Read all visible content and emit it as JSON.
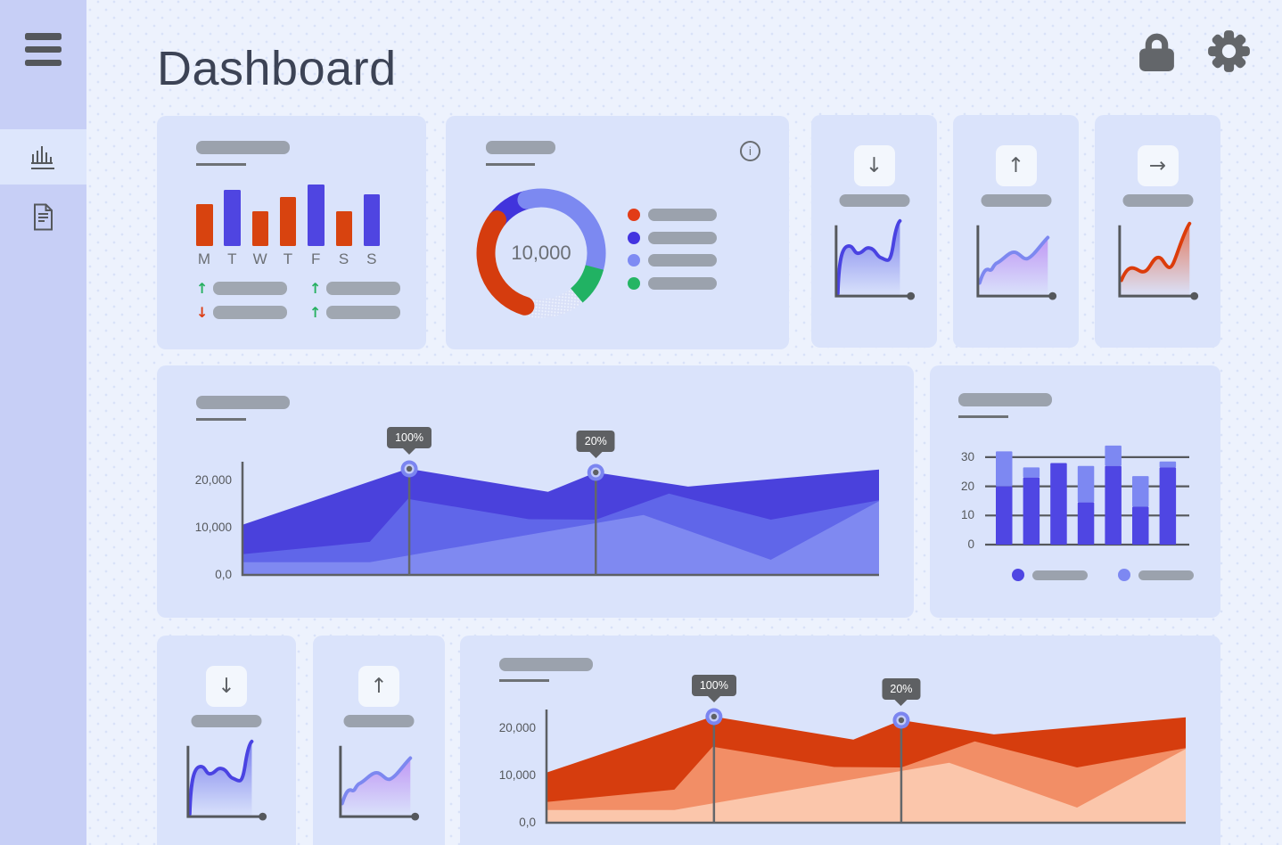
{
  "app": {
    "title": "Dashboard",
    "background": "#edf2fd",
    "card_background": "#dae3fb"
  },
  "sidebar": {
    "background": "#c7cff6",
    "active_background": "#dde6fc",
    "items": [
      {
        "id": "charts",
        "icon": "bar-chart-icon",
        "active": true
      },
      {
        "id": "reports",
        "icon": "document-icon",
        "active": false
      }
    ]
  },
  "header": {
    "actions": [
      {
        "id": "lock",
        "icon": "lock-icon"
      },
      {
        "id": "settings",
        "icon": "gear-icon"
      }
    ]
  },
  "cards": {
    "weekly_bars": {
      "chart_data": {
        "type": "bar",
        "categories": [
          "M",
          "T",
          "W",
          "T",
          "F",
          "S",
          "S"
        ],
        "values": [
          47,
          63,
          39,
          55,
          69,
          39,
          58
        ],
        "bar_colors": [
          "#d8430f",
          "#4f45e1",
          "#d8430f",
          "#d8430f",
          "#4f45e1",
          "#d8430f",
          "#4f45e1"
        ]
      },
      "stats": [
        {
          "direction": "up",
          "color": "#27b061"
        },
        {
          "direction": "up",
          "color": "#27b061"
        },
        {
          "direction": "down",
          "color": "#dc3f16"
        },
        {
          "direction": "up",
          "color": "#27b061"
        }
      ]
    },
    "donut": {
      "center_value": "10,000",
      "info_label": "i",
      "chart_data": {
        "type": "donut",
        "segments": [
          {
            "name": "muted-dotted",
            "start": 140,
            "span": 57,
            "pattern": true,
            "color": "#d9e0f8"
          },
          {
            "name": "dark-blue",
            "start": 307,
            "span": 38,
            "color": "#4134dc"
          },
          {
            "name": "periwinkle",
            "start": 345,
            "span": 120,
            "color": "#7c89f1",
            "cap": "round"
          },
          {
            "name": "green",
            "start": 105,
            "span": 35,
            "color": "#21b263"
          },
          {
            "name": "red",
            "start": 197,
            "span": 110,
            "color": "#d53c0e",
            "cap": "round"
          }
        ]
      },
      "legend": [
        {
          "color": "#e23c17"
        },
        {
          "color": "#4334e0"
        },
        {
          "color": "#7e8bf3"
        },
        {
          "color": "#25b564"
        }
      ]
    },
    "stat_tiles": [
      {
        "arrow": "down",
        "line_color": "#4a43e2",
        "fill_color": "#5a5fe8",
        "variant": "wavy"
      },
      {
        "arrow": "up",
        "line_color": "#7d88f0",
        "fill_color": "#b77ef2",
        "variant": "rising"
      },
      {
        "arrow": "right",
        "line_color": "#dc3c0b",
        "fill_color": "#e4552a",
        "variant": "spike"
      }
    ],
    "area_blue": {
      "chart_data": {
        "type": "area",
        "y_ticks": [
          20000,
          10000,
          0
        ],
        "y_tick_labels": [
          "20,000",
          "10,000",
          "0,0"
        ],
        "markers": [
          {
            "label": "100%",
            "x": 0.262
          },
          {
            "label": "20%",
            "x": 0.555
          }
        ],
        "series": [
          {
            "name": "top",
            "color": "#4a41dc",
            "x": [
              0,
              0.26,
              0.48,
              0.555,
              0.7,
              1
            ],
            "values": [
              10600,
              22500,
              17600,
              21700,
              18700,
              22300
            ]
          },
          {
            "name": "middle",
            "color": "#6066e9",
            "x": [
              0,
              0.2,
              0.26,
              0.45,
              0.555,
              0.67,
              0.83,
              1
            ],
            "values": [
              4400,
              7000,
              16100,
              11800,
              11700,
              17200,
              11700,
              15800
            ]
          },
          {
            "name": "bottom",
            "color": "#7f89f1",
            "x": [
              0,
              0.2,
              0.63,
              0.83,
              1
            ],
            "values": [
              2700,
              2700,
              12700,
              3200,
              15600
            ]
          }
        ]
      }
    },
    "stacked_bars": {
      "chart_data": {
        "type": "stacked-bar",
        "y_ticks": [
          0,
          10,
          20,
          30
        ],
        "series": [
          {
            "name": "primary",
            "color": "#4f46e3",
            "values": [
              20,
              23,
              28,
              14.5,
              27,
              13,
              26.5
            ]
          },
          {
            "name": "secondary",
            "color": "#7d88f2",
            "values": [
              12,
              3.5,
              0,
              12.5,
              7,
              10.5,
              2
            ]
          }
        ]
      },
      "legend": [
        {
          "color": "#4f46e3"
        },
        {
          "color": "#7d88f2"
        }
      ]
    },
    "area_red": {
      "chart_data": {
        "type": "area",
        "y_ticks": [
          20000,
          10000,
          0
        ],
        "y_tick_labels": [
          "20,000",
          "10,000",
          "0,0"
        ],
        "markers": [
          {
            "label": "100%",
            "x": 0.262
          },
          {
            "label": "20%",
            "x": 0.555
          }
        ],
        "series": [
          {
            "name": "top",
            "color": "#d63d0e",
            "x": [
              0,
              0.26,
              0.48,
              0.555,
              0.7,
              1
            ],
            "values": [
              10600,
              22500,
              17600,
              21700,
              18700,
              22300
            ]
          },
          {
            "name": "middle",
            "color": "#f28e66",
            "x": [
              0,
              0.2,
              0.26,
              0.45,
              0.555,
              0.67,
              0.83,
              1
            ],
            "values": [
              4400,
              7000,
              16100,
              11800,
              11700,
              17200,
              11700,
              15800
            ]
          },
          {
            "name": "bottom",
            "color": "#fbc6ab",
            "x": [
              0,
              0.2,
              0.63,
              0.83,
              1
            ],
            "values": [
              2700,
              2700,
              12700,
              3200,
              15600
            ]
          }
        ]
      }
    }
  }
}
